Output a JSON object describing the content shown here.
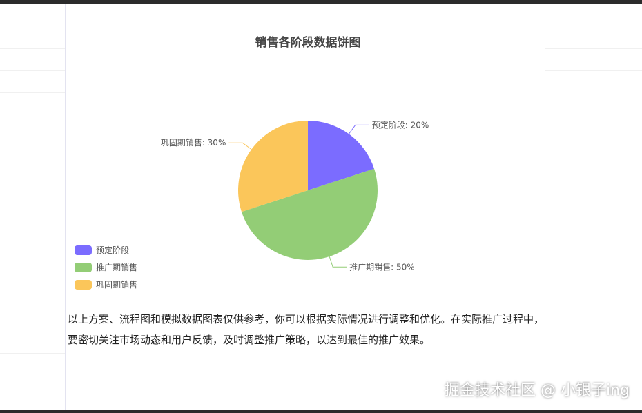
{
  "chart_data": {
    "type": "pie",
    "title": "销售各阶段数据饼图",
    "slices": [
      {
        "name": "预定阶段",
        "value": 20,
        "label": "预定阶段: 20%",
        "color": "#7b6cff"
      },
      {
        "name": "推广期销售",
        "value": 50,
        "label": "推广期销售: 50%",
        "color": "#93cd76"
      },
      {
        "name": "巩固期销售",
        "value": 30,
        "label": "巩固期销售: 30%",
        "color": "#fbc65a"
      }
    ],
    "start_angle_deg": 90,
    "direction": "clockwise",
    "legend_position": "bottom-left"
  },
  "paragraph": "以上方案、流程图和模拟数据图表仅供参考，你可以根据实际情况进行调整和优化。在实际推广过程中，要密切关注市场动态和用户反馈，及时调整推广策略，以达到最佳的推广效果。",
  "watermark": "掘金技术社区 @ 小银子ing"
}
